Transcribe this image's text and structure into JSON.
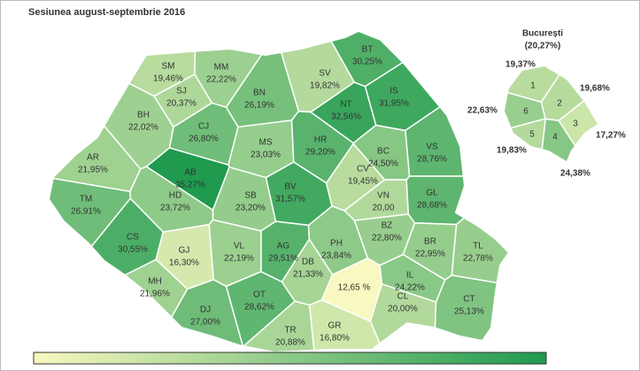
{
  "title": "Sesiunea august-septembrie 2016",
  "color_scale": [
    "#f8f8c0",
    "#1f9a4e"
  ],
  "regions": [
    {
      "code": "SM",
      "value": 19.46,
      "label": "19,46%"
    },
    {
      "code": "MM",
      "value": 22.22,
      "label": "22,22%"
    },
    {
      "code": "BT",
      "value": 30.25,
      "label": "30,25%"
    },
    {
      "code": "SV",
      "value": 19.82,
      "label": "19,82%"
    },
    {
      "code": "BH",
      "value": 22.02,
      "label": "22,02%"
    },
    {
      "code": "SJ",
      "value": 20.37,
      "label": "20,37%"
    },
    {
      "code": "BN",
      "value": 26.19,
      "label": "26,19%"
    },
    {
      "code": "IS",
      "value": 31.95,
      "label": "31,95%"
    },
    {
      "code": "CJ",
      "value": 26.8,
      "label": "26,80%"
    },
    {
      "code": "AR",
      "value": 21.95,
      "label": "21,95%"
    },
    {
      "code": "MS",
      "value": 23.03,
      "label": "23,03%"
    },
    {
      "code": "HR",
      "value": 29.2,
      "label": "29,20%"
    },
    {
      "code": "NT",
      "value": 32.56,
      "label": "32,56%"
    },
    {
      "code": "BC",
      "value": 24.5,
      "label": "24,50%"
    },
    {
      "code": "VS",
      "value": 28.76,
      "label": "28,76%"
    },
    {
      "code": "AB",
      "value": 35.27,
      "label": "35,27%"
    },
    {
      "code": "TM",
      "value": 26.91,
      "label": "26,91%"
    },
    {
      "code": "HD",
      "value": 23.72,
      "label": "23,72%"
    },
    {
      "code": "SB",
      "value": 23.2,
      "label": "23,20%"
    },
    {
      "code": "BV",
      "value": 31.57,
      "label": "31,57%"
    },
    {
      "code": "CV",
      "value": 19.45,
      "label": "19,45%"
    },
    {
      "code": "VN",
      "value": 20.0,
      "label": "20,00"
    },
    {
      "code": "GL",
      "value": 28.68,
      "label": "28,68%"
    },
    {
      "code": "CS",
      "value": 30.55,
      "label": "30,55%"
    },
    {
      "code": "GJ",
      "value": 16.3,
      "label": "16,30%"
    },
    {
      "code": "VL",
      "value": 22.19,
      "label": "22,19%"
    },
    {
      "code": "AG",
      "value": 29.51,
      "label": "29,51%"
    },
    {
      "code": "PH",
      "value": 23.84,
      "label": "23,84%"
    },
    {
      "code": "BZ",
      "value": 22.8,
      "label": "22,80%"
    },
    {
      "code": "BR",
      "value": 22.95,
      "label": "22,95%"
    },
    {
      "code": "TL",
      "value": 22.78,
      "label": "22,78%"
    },
    {
      "code": "MH",
      "value": 21.96,
      "label": "21,96%"
    },
    {
      "code": "DB",
      "value": 21.33,
      "label": "21,33%"
    },
    {
      "code": "IL",
      "value": 24.22,
      "label": "24,22%"
    },
    {
      "value": 12.65,
      "label": "12,65 %"
    },
    {
      "code": "CL",
      "value": 20.0,
      "label": "20,00%"
    },
    {
      "code": "OT",
      "value": 28.62,
      "label": "28,62%"
    },
    {
      "code": "DJ",
      "value": 27.0,
      "label": "27,00%"
    },
    {
      "code": "TR",
      "value": 20.88,
      "label": "20,88%"
    },
    {
      "code": "GR",
      "value": 16.8,
      "label": "16,80%"
    },
    {
      "code": "CT",
      "value": 25.13,
      "label": "25,13%"
    }
  ],
  "bucharest": {
    "title": "București",
    "label": "(20,27%)",
    "value": 20.27,
    "sectors": [
      {
        "name": "1",
        "value": 19.37,
        "label": "19,37%"
      },
      {
        "name": "2",
        "value": 19.68,
        "label": "19,68%"
      },
      {
        "name": "3",
        "value": 17.27,
        "label": "17,27%"
      },
      {
        "name": "4",
        "value": 24.38,
        "label": "24,38%"
      },
      {
        "name": "5",
        "value": 19.83,
        "label": "19,83%"
      },
      {
        "name": "6",
        "value": 22.63,
        "label": "22,63%"
      }
    ]
  }
}
